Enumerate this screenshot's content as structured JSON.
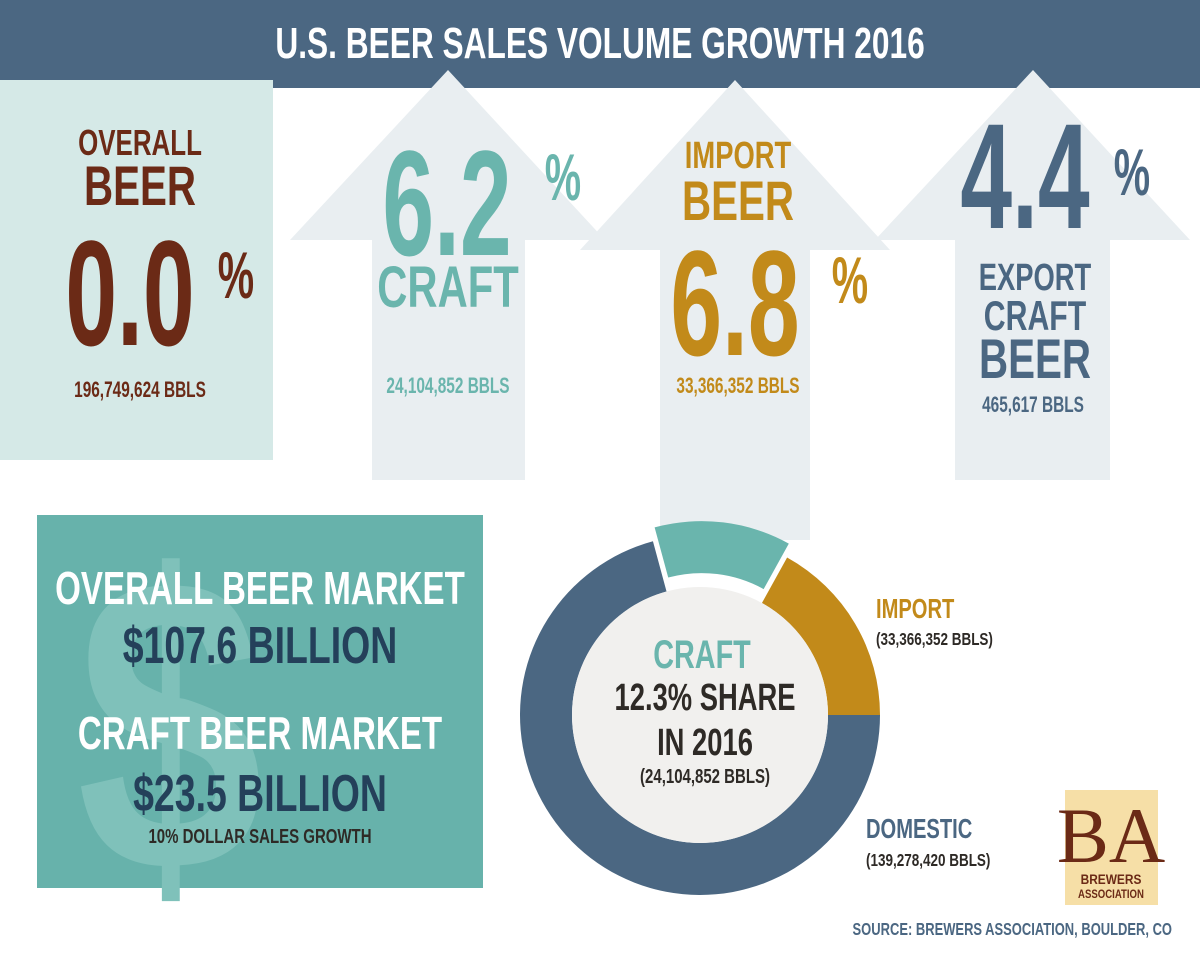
{
  "header": {
    "title": "U.S. BEER SALES VOLUME GROWTH 2016"
  },
  "overall": {
    "lines": [
      "OVERALL",
      "BEER"
    ],
    "value": "0.0",
    "unit": "%",
    "volume": "196,749,624 BBLS"
  },
  "craft": {
    "value": "6.2",
    "unit": "%",
    "lines": [
      "CRAFT"
    ],
    "volume": "24,104,852 BBLS"
  },
  "import": {
    "lines": [
      "IMPORT",
      "BEER"
    ],
    "value": "6.8",
    "unit": "%",
    "volume": "33,366,352 BBLS"
  },
  "export": {
    "value": "4.4",
    "unit": "%",
    "lines": [
      "EXPORT",
      "CRAFT",
      "BEER"
    ],
    "volume": "465,617 BBLS"
  },
  "market": {
    "overall_label": "OVERALL BEER MARKET",
    "overall_value": "$107.6 BILLION",
    "craft_label": "CRAFT BEER MARKET",
    "craft_value": "$23.5 BILLION",
    "note": "10% DOLLAR SALES GROWTH"
  },
  "chart_data": {
    "type": "donut",
    "categories": [
      "CRAFT",
      "IMPORT",
      "DOMESTIC"
    ],
    "values": [
      24104852,
      33366352,
      139278420
    ],
    "value_labels": [
      "(24,104,852 BBLS)",
      "(33,366,352 BBLS)",
      "(139,278,420 BBLS)"
    ],
    "colors": [
      "#6ab5ad",
      "#c28a1a",
      "#4b6782"
    ],
    "annotations": [
      "12.3% SHARE",
      "IN 2016"
    ]
  },
  "logo": {
    "mark": "BA",
    "lines": [
      "BREWERS",
      "ASSOCIATION"
    ]
  },
  "source": "SOURCE: BREWERS ASSOCIATION, BOULDER, CO"
}
